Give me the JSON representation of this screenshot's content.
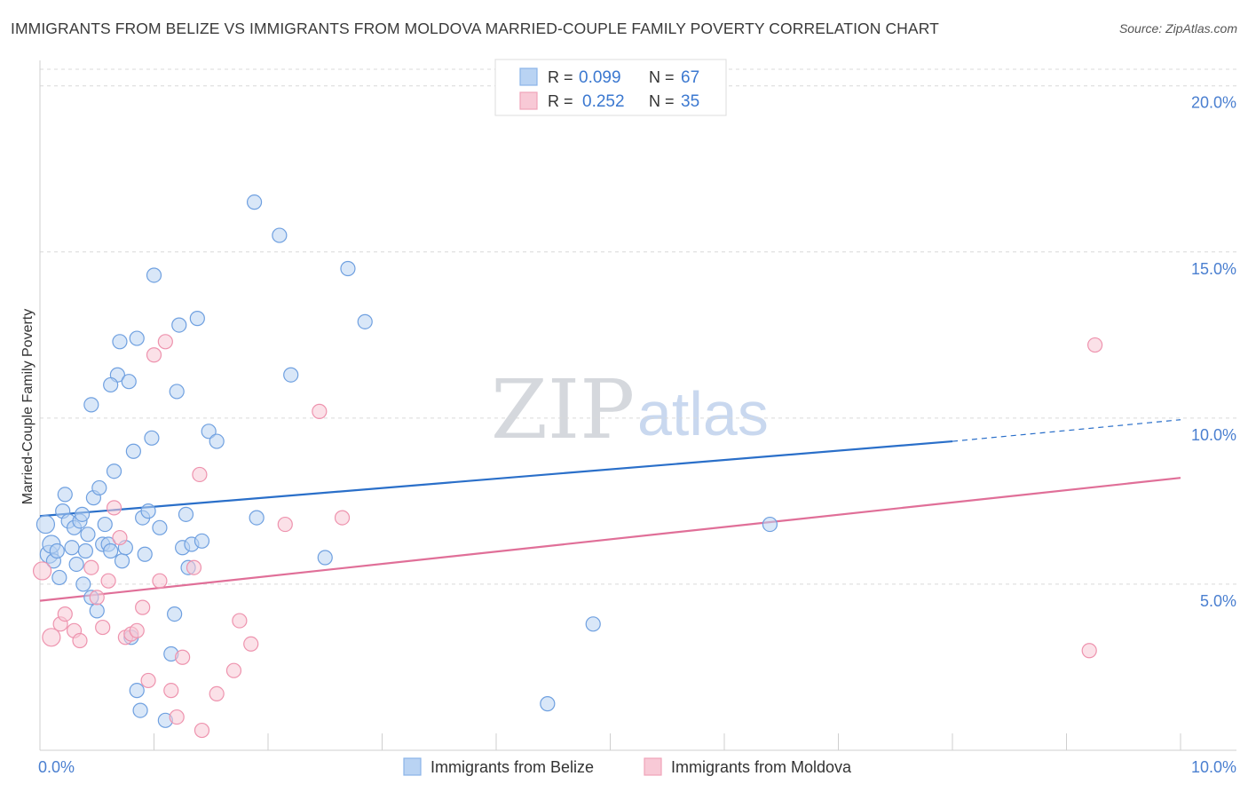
{
  "title": "IMMIGRANTS FROM BELIZE VS IMMIGRANTS FROM MOLDOVA MARRIED-COUPLE FAMILY POVERTY CORRELATION CHART",
  "source": "Source: ZipAtlas.com",
  "watermark": {
    "zip": "ZIP",
    "atlas": "atlas"
  },
  "chart_data": {
    "type": "scatter",
    "xlabel": "",
    "ylabel": "Married-Couple Family Poverty",
    "xlim": [
      0,
      10
    ],
    "ylim": [
      0,
      20.5
    ],
    "x_tick_labels": [
      "0.0%",
      "10.0%"
    ],
    "y_ticks": [
      5,
      10,
      15,
      20
    ],
    "y_tick_labels": [
      "5.0%",
      "10.0%",
      "15.0%",
      "20.0%"
    ],
    "legend": {
      "entries": [
        {
          "r_label": "R =",
          "r_value": "0.099",
          "n_label": "N =",
          "n_value": "67",
          "color": "#8ab4e8",
          "fill": "#b9d3f3"
        },
        {
          "r_label": "R =",
          "r_value": "0.252",
          "n_label": "N =",
          "n_value": "35",
          "color": "#f0a3b9",
          "fill": "#f8c9d6"
        }
      ]
    },
    "series": [
      {
        "name": "Immigrants from Belize",
        "color": "#6fa0e0",
        "fill": "#b9d3f3",
        "trend": {
          "x0": 0,
          "y0": 7.05,
          "x1": 8.0,
          "y1": 9.3,
          "dash_to_x": 10,
          "dash_to_y": 9.95,
          "color": "#2a6fc9"
        },
        "points": [
          [
            0.05,
            6.8
          ],
          [
            0.08,
            5.9
          ],
          [
            0.1,
            6.2
          ],
          [
            0.12,
            5.7
          ],
          [
            0.15,
            6.0
          ],
          [
            0.17,
            5.2
          ],
          [
            0.2,
            7.2
          ],
          [
            0.22,
            7.7
          ],
          [
            0.25,
            6.9
          ],
          [
            0.28,
            6.1
          ],
          [
            0.3,
            6.7
          ],
          [
            0.32,
            5.6
          ],
          [
            0.35,
            6.9
          ],
          [
            0.37,
            7.1
          ],
          [
            0.38,
            5.0
          ],
          [
            0.4,
            6.0
          ],
          [
            0.42,
            6.5
          ],
          [
            0.45,
            4.6
          ],
          [
            0.47,
            7.6
          ],
          [
            0.5,
            4.2
          ],
          [
            0.52,
            7.9
          ],
          [
            0.55,
            6.2
          ],
          [
            0.57,
            6.8
          ],
          [
            0.6,
            6.2
          ],
          [
            0.62,
            6.0
          ],
          [
            0.65,
            8.4
          ],
          [
            0.68,
            11.3
          ],
          [
            0.7,
            12.3
          ],
          [
            0.72,
            5.7
          ],
          [
            0.75,
            6.1
          ],
          [
            0.78,
            11.1
          ],
          [
            0.8,
            3.4
          ],
          [
            0.82,
            9.0
          ],
          [
            0.85,
            1.8
          ],
          [
            0.88,
            1.2
          ],
          [
            0.9,
            7.0
          ],
          [
            0.92,
            5.9
          ],
          [
            0.95,
            7.2
          ],
          [
            0.98,
            9.4
          ],
          [
            1.0,
            14.3
          ],
          [
            1.05,
            6.7
          ],
          [
            1.1,
            0.9
          ],
          [
            1.15,
            2.9
          ],
          [
            1.18,
            4.1
          ],
          [
            1.2,
            10.8
          ],
          [
            1.22,
            12.8
          ],
          [
            1.25,
            6.1
          ],
          [
            1.28,
            7.1
          ],
          [
            1.3,
            5.5
          ],
          [
            1.33,
            6.2
          ],
          [
            1.38,
            13.0
          ],
          [
            1.42,
            6.3
          ],
          [
            1.48,
            9.6
          ],
          [
            1.55,
            9.3
          ],
          [
            1.88,
            16.5
          ],
          [
            1.9,
            7.0
          ],
          [
            2.1,
            15.5
          ],
          [
            2.2,
            11.3
          ],
          [
            2.5,
            5.8
          ],
          [
            2.7,
            14.5
          ],
          [
            2.85,
            12.9
          ],
          [
            0.85,
            12.4
          ],
          [
            0.45,
            10.4
          ],
          [
            4.45,
            1.4
          ],
          [
            4.85,
            3.8
          ],
          [
            6.4,
            6.8
          ],
          [
            0.62,
            11.0
          ]
        ]
      },
      {
        "name": "Immigrants from Moldova",
        "color": "#ee93ae",
        "fill": "#f8c9d6",
        "trend": {
          "x0": 0,
          "y0": 4.5,
          "x1": 10,
          "y1": 8.2,
          "color": "#e06f98"
        },
        "points": [
          [
            0.02,
            5.4
          ],
          [
            0.1,
            3.4
          ],
          [
            0.18,
            3.8
          ],
          [
            0.22,
            4.1
          ],
          [
            0.3,
            3.6
          ],
          [
            0.35,
            3.3
          ],
          [
            0.45,
            5.5
          ],
          [
            0.5,
            4.6
          ],
          [
            0.55,
            3.7
          ],
          [
            0.6,
            5.1
          ],
          [
            0.65,
            7.3
          ],
          [
            0.7,
            6.4
          ],
          [
            0.75,
            3.4
          ],
          [
            0.8,
            3.5
          ],
          [
            0.85,
            3.6
          ],
          [
            0.9,
            4.3
          ],
          [
            0.95,
            2.1
          ],
          [
            1.0,
            11.9
          ],
          [
            1.05,
            5.1
          ],
          [
            1.1,
            12.3
          ],
          [
            1.15,
            1.8
          ],
          [
            1.2,
            1.0
          ],
          [
            1.25,
            2.8
          ],
          [
            1.35,
            5.5
          ],
          [
            1.4,
            8.3
          ],
          [
            1.42,
            0.6
          ],
          [
            1.55,
            1.7
          ],
          [
            1.7,
            2.4
          ],
          [
            1.75,
            3.9
          ],
          [
            1.85,
            3.2
          ],
          [
            2.15,
            6.8
          ],
          [
            2.45,
            10.2
          ],
          [
            2.65,
            7.0
          ],
          [
            9.25,
            12.2
          ],
          [
            9.2,
            3.0
          ]
        ]
      }
    ]
  }
}
